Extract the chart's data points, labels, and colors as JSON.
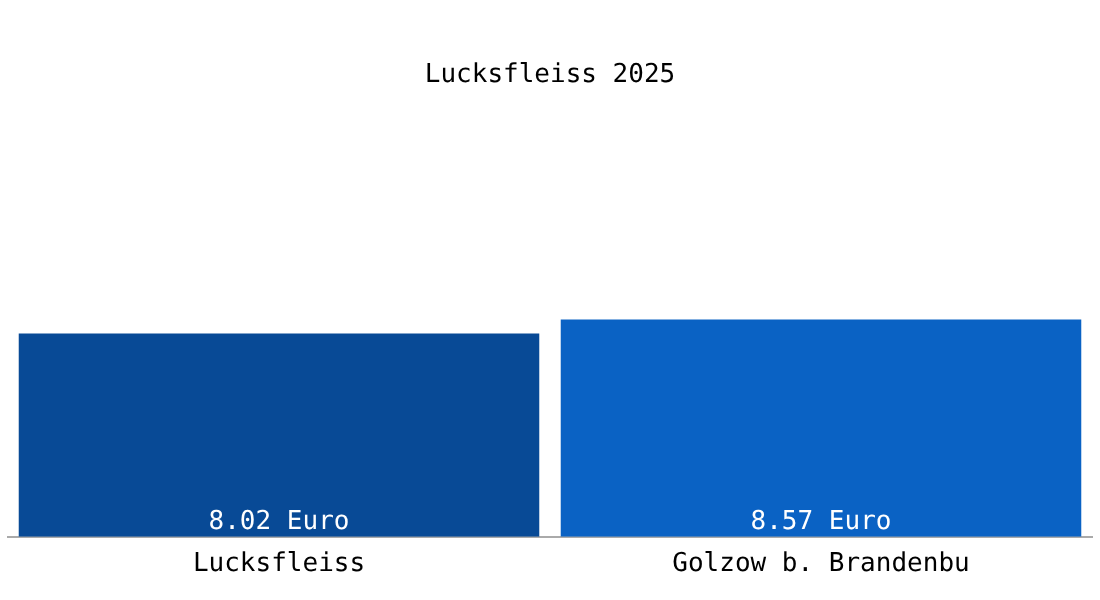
{
  "chart_data": {
    "type": "bar",
    "title": "Lucksfleiss 2025",
    "categories": [
      "Lucksfleiss",
      "Golzow b. Brandenbu"
    ],
    "values": [
      8.02,
      8.57
    ],
    "colors": [
      "#084a96",
      "#0a62c4"
    ],
    "value_labels": [
      "8.02 Euro",
      "8.57 Euro"
    ],
    "tick_labels": "x",
    "grid": false,
    "legend": false
  }
}
